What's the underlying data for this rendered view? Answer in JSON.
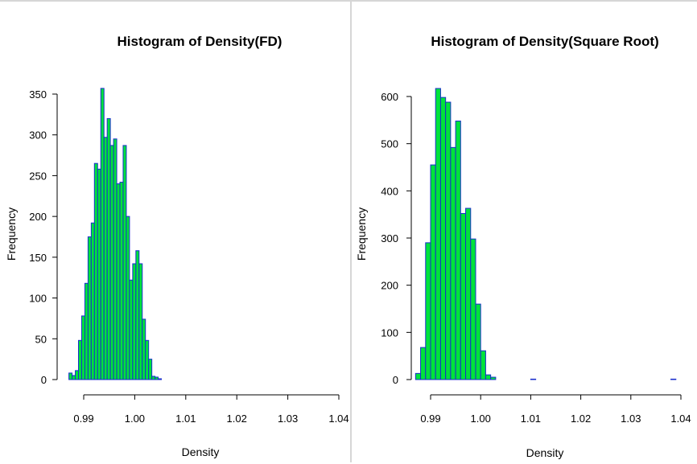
{
  "colors": {
    "bar_fill": "#00e33a",
    "bar_border": "#1a2ecc",
    "background": "#ffffff"
  },
  "chart_data": [
    {
      "type": "bar",
      "title": "Histogram of Density(FD)",
      "xlabel": "Density",
      "ylabel": "Frequency",
      "xlim": [
        0.987,
        1.039
      ],
      "ylim": [
        0,
        350
      ],
      "x_ticks": [
        "0.99",
        "1.00",
        "1.01",
        "1.02",
        "1.03",
        "1.04"
      ],
      "x_tick_values": [
        0.99,
        1.0,
        1.01,
        1.02,
        1.03,
        1.04
      ],
      "y_ticks": [
        "0",
        "50",
        "100",
        "150",
        "200",
        "250",
        "300",
        "350"
      ],
      "y_tick_values": [
        0,
        50,
        100,
        150,
        200,
        250,
        300,
        350
      ],
      "bin_width": 0.000625,
      "bin_start": 0.9871,
      "values": [
        8,
        5,
        11,
        48,
        78,
        118,
        175,
        192,
        265,
        258,
        357,
        297,
        320,
        287,
        295,
        240,
        242,
        287,
        200,
        122,
        142,
        158,
        142,
        74,
        48,
        25,
        4,
        3,
        1,
        0,
        0,
        0,
        0,
        0,
        0,
        0,
        0,
        0,
        0,
        0,
        0,
        0,
        0,
        0,
        0,
        0,
        0,
        0,
        0,
        0,
        0,
        0,
        0,
        0,
        0,
        0,
        0,
        0,
        0,
        0,
        0,
        0,
        0,
        0,
        0,
        0,
        0,
        0,
        0,
        0,
        0,
        0,
        0,
        0,
        0,
        0,
        0,
        0,
        0,
        0,
        0,
        0,
        0,
        0,
        0,
        0,
        0,
        0,
        0,
        0,
        0,
        0,
        0,
        0,
        0,
        0,
        0,
        0,
        0,
        0,
        0,
        0,
        0,
        0,
        0,
        0,
        0,
        0,
        0,
        0,
        0,
        0,
        0,
        0,
        0,
        0,
        0,
        0,
        0,
        0,
        0,
        0,
        0,
        0,
        0,
        0,
        0,
        0,
        0,
        0,
        0,
        0,
        1
      ]
    },
    {
      "type": "bar",
      "title": "Histogram of Density(Square Root)",
      "xlabel": "Density",
      "ylabel": "Frequency",
      "xlim": [
        0.987,
        1.039
      ],
      "ylim": [
        0,
        600
      ],
      "x_ticks": [
        "0.99",
        "1.00",
        "1.01",
        "1.02",
        "1.03",
        "1.04"
      ],
      "x_tick_values": [
        0.99,
        1.0,
        1.01,
        1.02,
        1.03,
        1.04
      ],
      "y_ticks": [
        "0",
        "100",
        "200",
        "300",
        "400",
        "500",
        "600"
      ],
      "y_tick_values": [
        0,
        100,
        200,
        300,
        400,
        500,
        600
      ],
      "bin_width": 0.001,
      "bin_start": 0.987,
      "values": [
        13,
        68,
        290,
        455,
        617,
        598,
        588,
        492,
        548,
        352,
        363,
        298,
        160,
        61,
        10,
        5,
        0,
        0,
        0,
        0,
        0,
        0,
        0,
        1,
        0,
        0,
        0,
        0,
        0,
        0,
        0,
        0,
        0,
        0,
        0,
        0,
        0,
        0,
        0,
        0,
        0,
        0,
        0,
        0,
        0,
        0,
        0,
        0,
        0,
        0,
        0,
        1
      ]
    }
  ]
}
